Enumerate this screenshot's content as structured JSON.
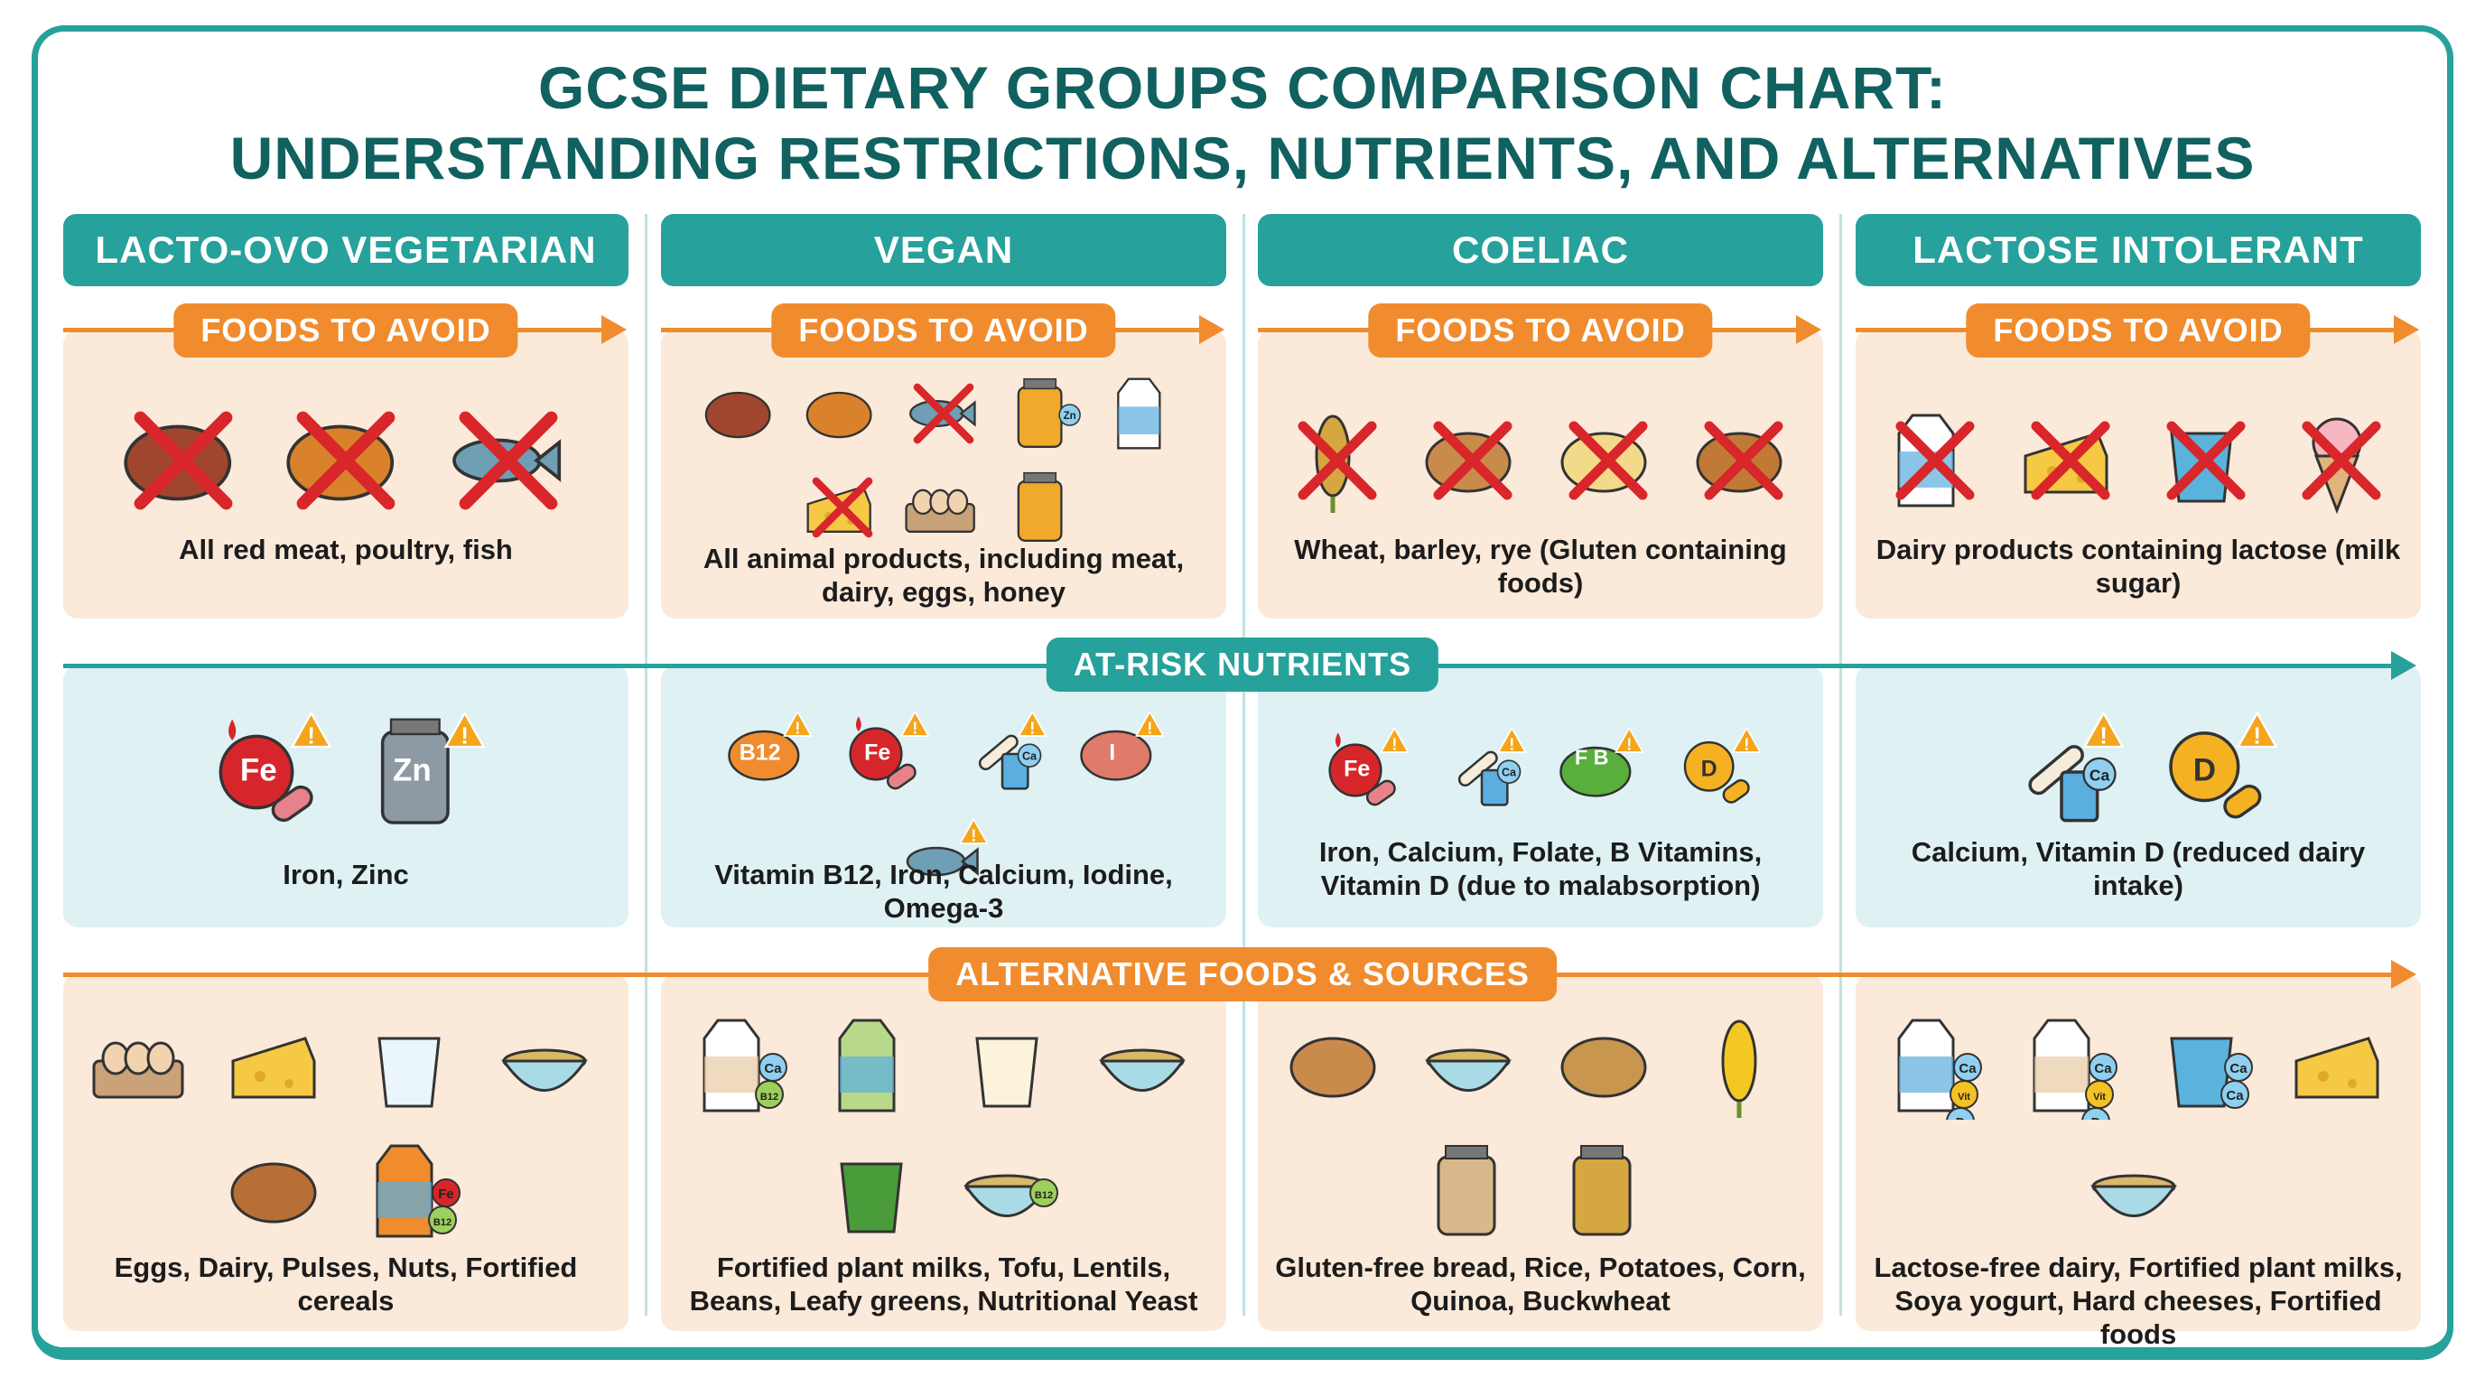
{
  "title": {
    "line1": "GCSE DIETARY GROUPS COMPARISON CHART:",
    "line2": "UNDERSTANDING RESTRICTIONS, NUTRIENTS, AND ALTERNATIVES"
  },
  "colors": {
    "teal": "#26a19b",
    "title": "#10615f",
    "orange": "#f08c2e",
    "peach": "#fbe9da",
    "light_blue": "#dff1f3",
    "cross": "#d8262b"
  },
  "section_labels": {
    "avoid": "FOODS TO AVOID",
    "nutrients": "AT-RISK NUTRIENTS",
    "alternatives": "ALTERNATIVE FOODS & SOURCES"
  },
  "columns": [
    {
      "header": "LACTO-OVO VEGETARIAN",
      "avoid": {
        "text": "All red meat, poultry, fish",
        "icons": [
          {
            "name": "steak-icon"
          },
          {
            "name": "roast-chicken-icon"
          },
          {
            "name": "fish-icon"
          }
        ]
      },
      "nutrients": {
        "text": "Iron, Zinc",
        "icons": [
          {
            "name": "iron-icon",
            "badge": "Fe"
          },
          {
            "name": "zinc-supplement-icon",
            "badge": "Zn"
          }
        ]
      },
      "alternatives": {
        "text": "Eggs, Dairy, Pulses, Nuts, Fortified cereals",
        "icons": [
          {
            "name": "eggs-icon"
          },
          {
            "name": "cheese-icon"
          },
          {
            "name": "milk-glass-icon"
          },
          {
            "name": "pulses-bowl-icon"
          },
          {
            "name": "nuts-icon"
          },
          {
            "name": "cereal-box-icon",
            "badge": "Fe B12"
          }
        ]
      }
    },
    {
      "header": "VEGAN",
      "avoid": {
        "text": "All animal products, including meat, dairy, eggs, honey",
        "icons": [
          {
            "name": "steak-icon"
          },
          {
            "name": "chicken-icon"
          },
          {
            "name": "fish-icon"
          },
          {
            "name": "supplement-jar-icon",
            "badge": "Zn"
          },
          {
            "name": "milk-carton-icon"
          },
          {
            "name": "cheese-icon"
          },
          {
            "name": "eggs-icon"
          },
          {
            "name": "honey-jar-icon"
          }
        ]
      },
      "nutrients": {
        "text": "Vitamin B12, Iron, Calcium, Iodine, Omega-3",
        "icons": [
          {
            "name": "b12-syringe-icon",
            "badge": "B12"
          },
          {
            "name": "iron-icon",
            "badge": "Fe"
          },
          {
            "name": "calcium-bone-icon",
            "badge": "Ca"
          },
          {
            "name": "iodine-thyroid-icon",
            "badge": "I"
          },
          {
            "name": "omega-fish-icon"
          }
        ]
      },
      "alternatives": {
        "text": "Fortified plant milks, Tofu, Lentils, Beans, Leafy greens, Nutritional Yeast",
        "icons": [
          {
            "name": "almond-milk-icon",
            "badge": "Ca B12"
          },
          {
            "name": "soy-milk-icon"
          },
          {
            "name": "tofu-icon"
          },
          {
            "name": "lentils-bowl-icon"
          },
          {
            "name": "leafy-greens-icon"
          },
          {
            "name": "nutritional-yeast-icon",
            "badge": "B12"
          }
        ]
      }
    },
    {
      "header": "COELIAC",
      "avoid": {
        "text": "Wheat, barley, rye (Gluten containing foods)",
        "icons": [
          {
            "name": "wheat-icon"
          },
          {
            "name": "bread-icon"
          },
          {
            "name": "pasta-icon"
          },
          {
            "name": "pretzel-icon"
          }
        ]
      },
      "nutrients": {
        "text": "Iron, Calcium, Folate, B Vitamins, Vitamin D (due to malabsorption)",
        "icons": [
          {
            "name": "iron-icon",
            "badge": "Fe"
          },
          {
            "name": "calcium-bone-icon",
            "badge": "Ca"
          },
          {
            "name": "folate-b-icon",
            "badge": "F B"
          },
          {
            "name": "vitamin-d-sun-icon",
            "badge": "D"
          }
        ]
      },
      "alternatives": {
        "text": "Gluten-free bread, Rice, Potatoes, Corn, Quinoa, Buckwheat",
        "icons": [
          {
            "name": "bread-icon"
          },
          {
            "name": "rice-bowl-icon"
          },
          {
            "name": "potato-icon"
          },
          {
            "name": "corn-icon"
          },
          {
            "name": "quinoa-bag-icon"
          },
          {
            "name": "buckwheat-bag-icon"
          }
        ]
      }
    },
    {
      "header": "LACTOSE INTOLERANT",
      "avoid": {
        "text": "Dairy products containing lactose (milk sugar)",
        "icons": [
          {
            "name": "milk-carton-icon"
          },
          {
            "name": "cheese-icon"
          },
          {
            "name": "yogurt-icon"
          },
          {
            "name": "ice-cream-icon"
          }
        ]
      },
      "nutrients": {
        "text": "Calcium, Vitamin D (reduced dairy intake)",
        "icons": [
          {
            "name": "calcium-bone-icon",
            "badge": "Ca"
          },
          {
            "name": "vitamin-d-sun-icon",
            "badge": "D"
          }
        ]
      },
      "alternatives": {
        "text": "Lactose-free dairy, Fortified plant milks, Soya yogurt, Hard cheeses, Fortified foods",
        "icons": [
          {
            "name": "lactose-free-milk-icon",
            "badge": "Ca Vit D"
          },
          {
            "name": "oat-milk-icon",
            "badge": "Ca Vit D"
          },
          {
            "name": "soya-yogurt-icon",
            "badge": "Ca Ca"
          },
          {
            "name": "hard-cheese-icon"
          },
          {
            "name": "fortified-cereal-bowl-icon"
          }
        ]
      }
    }
  ]
}
